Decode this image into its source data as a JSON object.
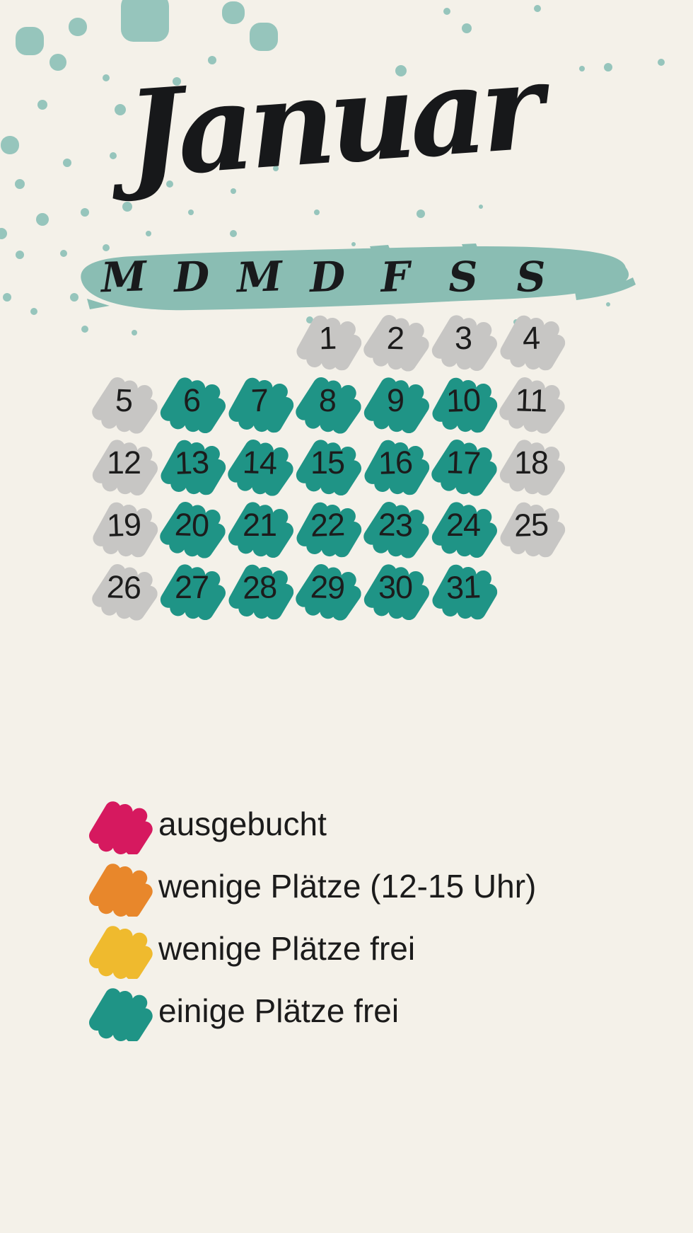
{
  "title": "Januar",
  "weekdays": [
    "M",
    "D",
    "M",
    "D",
    "F",
    "S",
    "S"
  ],
  "calendar": {
    "status_colors": {
      "unavailable": "#c7c6c4",
      "einige_frei": "#1f9486"
    },
    "weeks": [
      [
        null,
        null,
        null,
        {
          "day": "1",
          "status": "unavailable"
        },
        {
          "day": "2",
          "status": "unavailable"
        },
        {
          "day": "3",
          "status": "unavailable"
        },
        {
          "day": "4",
          "status": "unavailable"
        }
      ],
      [
        {
          "day": "5",
          "status": "unavailable"
        },
        {
          "day": "6",
          "status": "einige_frei"
        },
        {
          "day": "7",
          "status": "einige_frei"
        },
        {
          "day": "8",
          "status": "einige_frei"
        },
        {
          "day": "9",
          "status": "einige_frei"
        },
        {
          "day": "10",
          "status": "einige_frei"
        },
        {
          "day": "11",
          "status": "unavailable"
        }
      ],
      [
        {
          "day": "12",
          "status": "unavailable"
        },
        {
          "day": "13",
          "status": "einige_frei"
        },
        {
          "day": "14",
          "status": "einige_frei"
        },
        {
          "day": "15",
          "status": "einige_frei"
        },
        {
          "day": "16",
          "status": "einige_frei"
        },
        {
          "day": "17",
          "status": "einige_frei"
        },
        {
          "day": "18",
          "status": "unavailable"
        }
      ],
      [
        {
          "day": "19",
          "status": "unavailable"
        },
        {
          "day": "20",
          "status": "einige_frei"
        },
        {
          "day": "21",
          "status": "einige_frei"
        },
        {
          "day": "22",
          "status": "einige_frei"
        },
        {
          "day": "23",
          "status": "einige_frei"
        },
        {
          "day": "24",
          "status": "einige_frei"
        },
        {
          "day": "25",
          "status": "unavailable"
        }
      ],
      [
        {
          "day": "26",
          "status": "unavailable"
        },
        {
          "day": "27",
          "status": "einige_frei"
        },
        {
          "day": "28",
          "status": "einige_frei"
        },
        {
          "day": "29",
          "status": "einige_frei"
        },
        {
          "day": "30",
          "status": "einige_frei"
        },
        {
          "day": "31",
          "status": "einige_frei"
        },
        null
      ]
    ]
  },
  "legend": {
    "items": [
      {
        "label": "ausgebucht",
        "color": "#d6195f"
      },
      {
        "label": "wenige Plätze (12-15 Uhr)",
        "color": "#e8872b"
      },
      {
        "label": "wenige Plätze frei",
        "color": "#efba2e"
      },
      {
        "label": "einige Plätze frei",
        "color": "#1f9486"
      }
    ]
  },
  "colors": {
    "background": "#f4f1e9",
    "splatter": "#92c3ba",
    "header_brush": "#8abdb3",
    "text": "#1c1c1c"
  }
}
